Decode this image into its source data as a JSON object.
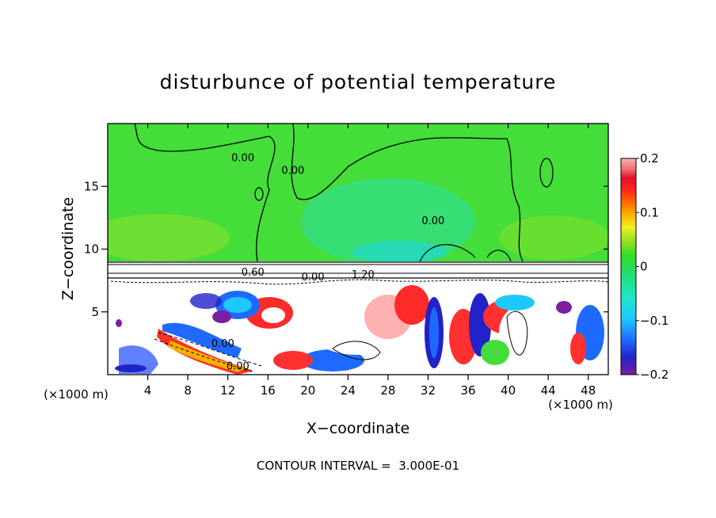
{
  "chart_data": {
    "type": "heatmap",
    "title": "disturbunce of potential temperature",
    "xlabel": "X−coordinate",
    "ylabel": "Z−coordinate",
    "x_unit": "(×1000 m)",
    "y_unit": "(×1000 m)",
    "xlim": [
      0,
      50
    ],
    "ylim": [
      0,
      20
    ],
    "x_ticks": [
      4,
      8,
      12,
      16,
      20,
      24,
      28,
      32,
      36,
      40,
      44,
      48
    ],
    "y_ticks": [
      5,
      10,
      15
    ],
    "colorbar": {
      "range": [
        -0.2,
        0.2
      ],
      "tick_values": [
        0.2,
        0.1,
        0,
        -0.1,
        -0.2
      ],
      "tick_labels": [
        "0.2",
        "0.1",
        "0",
        "−0.1",
        "−0.2"
      ],
      "colors": [
        "#7b1fa2",
        "#2222c8",
        "#1e6aff",
        "#1ec8ff",
        "#1ee6c8",
        "#22dd66",
        "#33dd22",
        "#99e022",
        "#f0f020",
        "#ffb000",
        "#ff6600",
        "#ff2020",
        "#e0102a",
        "#f07070",
        "#ffb0b0"
      ]
    },
    "contour_labels": [
      {
        "text": "0.00",
        "x": 13.5,
        "z": 17
      },
      {
        "text": "0.00",
        "x": 18.5,
        "z": 16
      },
      {
        "text": "0.00",
        "x": 32.5,
        "z": 12
      },
      {
        "text": "0.60",
        "x": 14.5,
        "z": 7.9
      },
      {
        "text": "0.00",
        "x": 20.5,
        "z": 7.5
      },
      {
        "text": "1.20",
        "x": 25.5,
        "z": 7.7
      },
      {
        "text": "0.00",
        "x": 11.5,
        "z": 2.2
      },
      {
        "text": "0.00",
        "x": 13,
        "z": 0.4
      }
    ],
    "contour_interval_text": "CONTOUR INTERVAL =  3.000E-01"
  }
}
